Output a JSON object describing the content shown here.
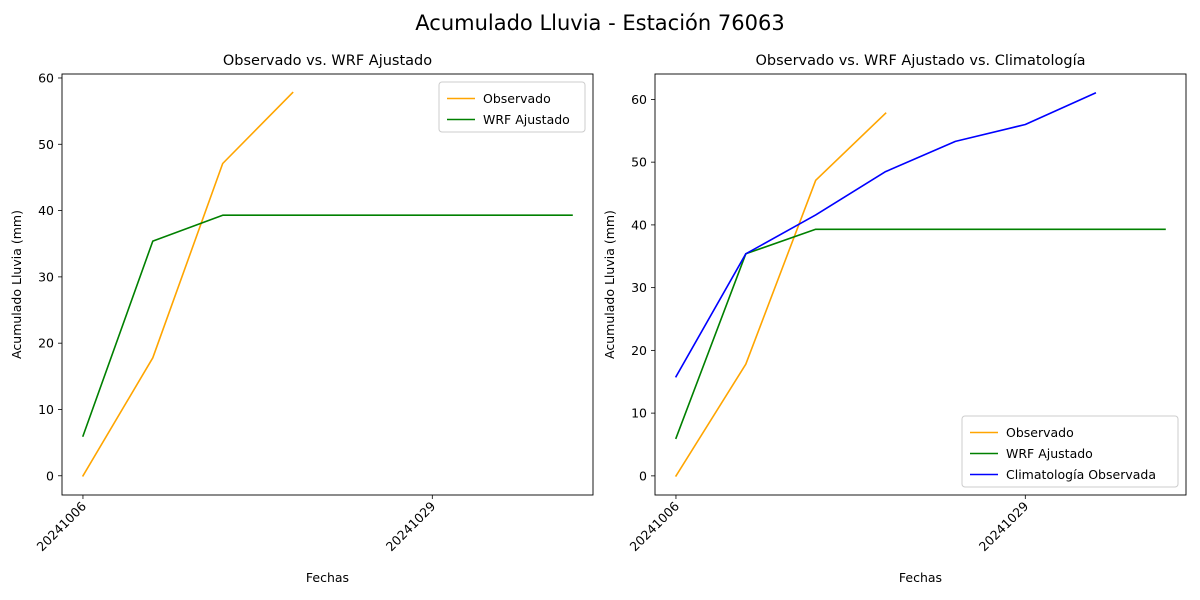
{
  "figure": {
    "title": "Acumulado Lluvia - Estación 76063"
  },
  "chart_data": [
    {
      "type": "line",
      "title": "Observado vs. WRF Ajustado",
      "xlabel": "Fechas",
      "ylabel": "Acumulado Lluvia (mm)",
      "x": [
        "20241006",
        "",
        "",
        "",
        "",
        "20241029",
        "",
        ""
      ],
      "xticks": [
        {
          "index": 0,
          "label": "20241006"
        },
        {
          "index": 5,
          "label": "20241029"
        }
      ],
      "xlim": [
        -0.3,
        7.3
      ],
      "ylim": [
        -2.9,
        60.6
      ],
      "yticks": [
        0,
        10,
        20,
        30,
        40,
        50,
        60
      ],
      "legend_position": "upper right",
      "series": [
        {
          "name": "Observado",
          "color": "#FFA500",
          "values": [
            0,
            17.8,
            47.1,
            57.8,
            null,
            null,
            null,
            null
          ]
        },
        {
          "name": "WRF Ajustado",
          "color": "#008000",
          "values": [
            6.0,
            35.4,
            39.3,
            39.3,
            39.3,
            39.3,
            39.3,
            39.3
          ]
        }
      ]
    },
    {
      "type": "line",
      "title": "Observado vs. WRF Ajustado vs. Climatología",
      "xlabel": "Fechas",
      "ylabel": "Acumulado Lluvia (mm)",
      "x": [
        "20241006",
        "",
        "",
        "",
        "",
        "20241029",
        "",
        ""
      ],
      "xticks": [
        {
          "index": 0,
          "label": "20241006"
        },
        {
          "index": 5,
          "label": "20241029"
        }
      ],
      "xlim": [
        -0.3,
        7.3
      ],
      "ylim": [
        -3.05,
        64.05
      ],
      "yticks": [
        0,
        10,
        20,
        30,
        40,
        50,
        60
      ],
      "legend_position": "lower right",
      "series": [
        {
          "name": "Observado",
          "color": "#FFA500",
          "values": [
            0,
            17.8,
            47.1,
            57.8,
            null,
            null,
            null,
            null
          ]
        },
        {
          "name": "WRF Ajustado",
          "color": "#008000",
          "values": [
            6.0,
            35.4,
            39.3,
            39.3,
            39.3,
            39.3,
            39.3,
            39.3
          ]
        },
        {
          "name": "Climatología Observada",
          "color": "#0000FF",
          "values": [
            15.8,
            35.4,
            41.6,
            48.5,
            53.3,
            56.0,
            61.0,
            null
          ]
        }
      ]
    }
  ]
}
